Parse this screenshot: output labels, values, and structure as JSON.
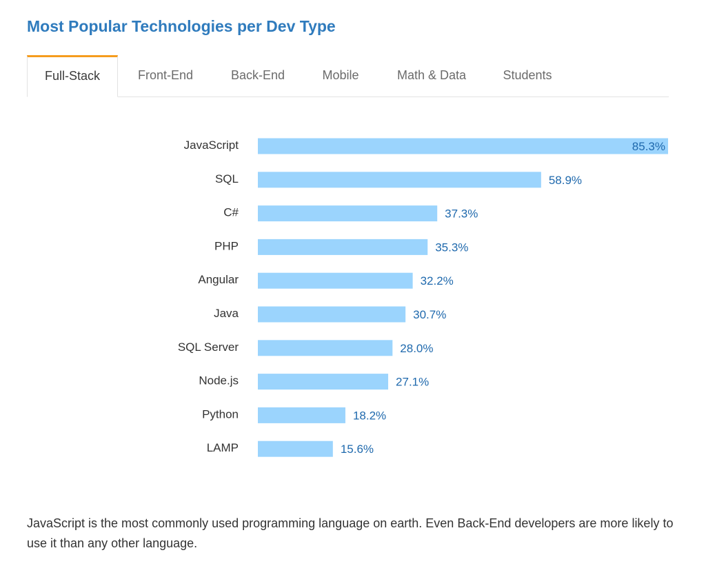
{
  "title": "Most Popular Technologies per Dev Type",
  "tabs": [
    {
      "label": "Full-Stack",
      "active": true
    },
    {
      "label": "Front-End",
      "active": false
    },
    {
      "label": "Back-End",
      "active": false
    },
    {
      "label": "Mobile",
      "active": false
    },
    {
      "label": "Math & Data",
      "active": false
    },
    {
      "label": "Students",
      "active": false
    }
  ],
  "chart_data": {
    "type": "bar",
    "orientation": "horizontal",
    "categories": [
      "JavaScript",
      "SQL",
      "C#",
      "PHP",
      "Angular",
      "Java",
      "SQL Server",
      "Node.js",
      "Python",
      "LAMP"
    ],
    "values": [
      85.3,
      58.9,
      37.3,
      35.3,
      32.2,
      30.7,
      28.0,
      27.1,
      18.2,
      15.6
    ],
    "value_labels": [
      "85.3%",
      "58.9%",
      "37.3%",
      "35.3%",
      "32.2%",
      "30.7%",
      "28.0%",
      "27.1%",
      "18.2%",
      "15.6%"
    ],
    "unit": "%",
    "bar_color": "#9bd4fd",
    "label_color": "#1f69ad",
    "grid": false
  },
  "note": "JavaScript is the most commonly used programming language on earth. Even Back-End developers are more likely to use it than any other language."
}
